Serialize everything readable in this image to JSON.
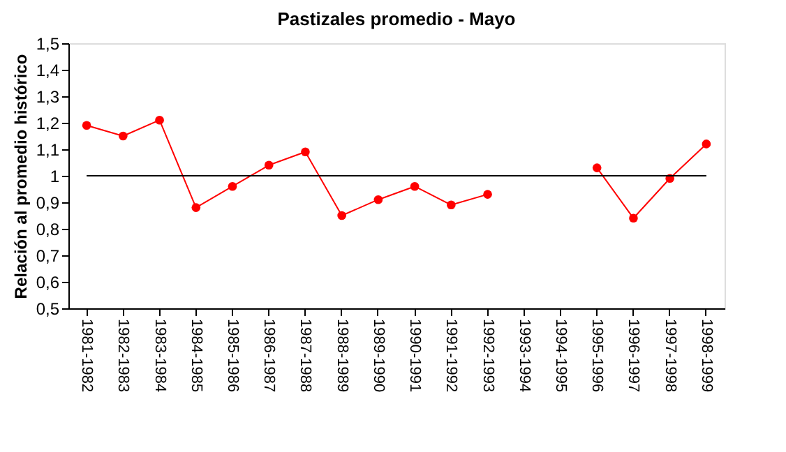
{
  "chart_data": {
    "type": "line",
    "title": "Pastizales promedio - Mayo",
    "ylabel": "Relación al promedio histórico",
    "categories": [
      "1981-1982",
      "1982-1983",
      "1983-1984",
      "1984-1985",
      "1985-1986",
      "1986-1987",
      "1987-1988",
      "1988-1989",
      "1989-1990",
      "1990-1991",
      "1991-1992",
      "1992-1993",
      "1993-1994",
      "1994-1995",
      "1995-1996",
      "1996-1997",
      "1997-1998",
      "1998-1999"
    ],
    "series": [
      {
        "color": "#ff0000",
        "values": [
          1.19,
          1.15,
          1.21,
          0.88,
          0.96,
          1.04,
          1.09,
          0.85,
          0.91,
          0.96,
          0.89,
          0.93,
          null,
          null,
          1.03,
          0.84,
          0.99,
          1.12
        ]
      }
    ],
    "ylim": [
      0.5,
      1.5
    ],
    "yticks": [
      {
        "value": 0.5,
        "label": "0,5"
      },
      {
        "value": 0.6,
        "label": "0,6"
      },
      {
        "value": 0.7,
        "label": "0,7"
      },
      {
        "value": 0.8,
        "label": "0,8"
      },
      {
        "value": 0.9,
        "label": "0,9"
      },
      1,
      {
        "value": 1.1,
        "label": "1,1"
      },
      {
        "value": 1.2,
        "label": "1,2"
      },
      {
        "value": 1.3,
        "label": "1,3"
      },
      {
        "value": 1.4,
        "label": "1,4"
      },
      {
        "value": 1.5,
        "label": "1,5"
      }
    ],
    "ref_lines": [
      {
        "axis": "y",
        "value": 1,
        "color": "#000000"
      }
    ],
    "grid": false,
    "legend": false,
    "marker": "circle",
    "line_style": "solid"
  }
}
